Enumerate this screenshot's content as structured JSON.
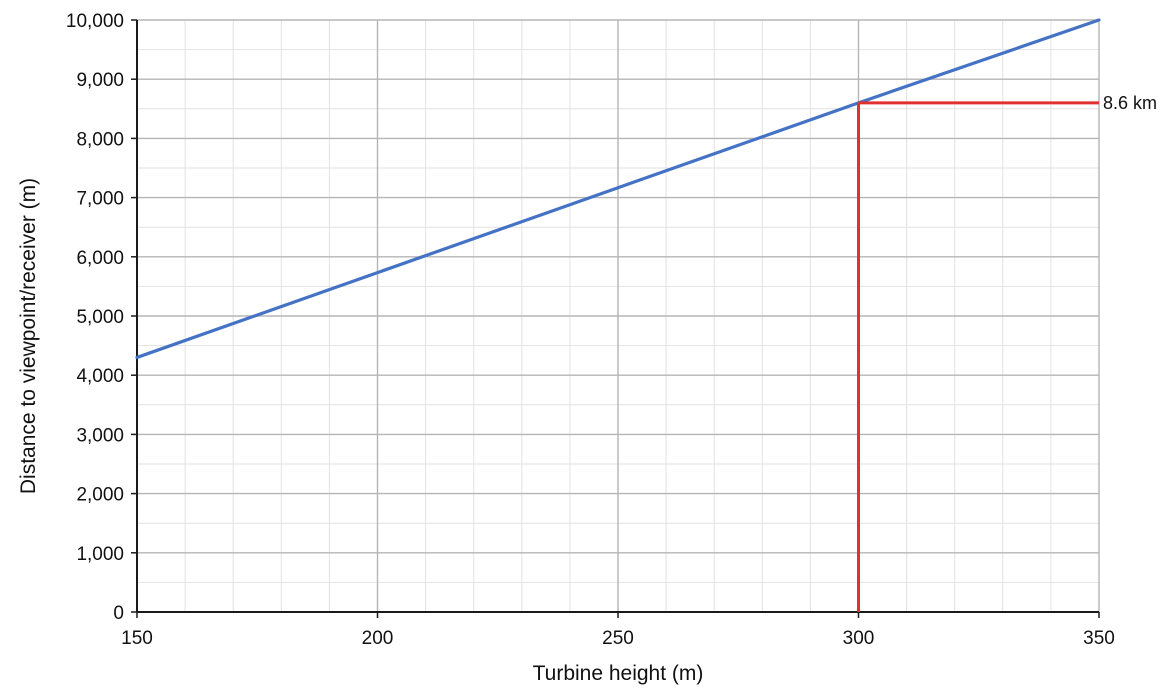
{
  "chart_data": {
    "type": "line",
    "xlabel": "Turbine height (m)",
    "ylabel": "Distance to viewpoint/receiver (m)",
    "xlim": [
      150,
      350
    ],
    "ylim": [
      0,
      10000
    ],
    "x_major_ticks": [
      150,
      200,
      250,
      300,
      350
    ],
    "x_tick_labels": [
      "150",
      "200",
      "250",
      "300",
      "350"
    ],
    "x_minor_step": 10,
    "y_major_ticks": [
      0,
      1000,
      2000,
      3000,
      4000,
      5000,
      6000,
      7000,
      8000,
      9000,
      10000
    ],
    "y_tick_labels": [
      "0",
      "1,000",
      "2,000",
      "3,000",
      "4,000",
      "5,000",
      "6,000",
      "7,000",
      "8,000",
      "9,000",
      "10,000"
    ],
    "y_minor_step": 500,
    "grid": true,
    "series": [
      {
        "x": [
          150,
          200,
          250,
          300,
          350
        ],
        "y": [
          4300,
          5733,
          7167,
          8600,
          10000
        ],
        "color": "#4472c4"
      }
    ],
    "annotation": {
      "x": 300,
      "y": 8600,
      "label": "8.6 km",
      "color": "#e03030"
    }
  }
}
